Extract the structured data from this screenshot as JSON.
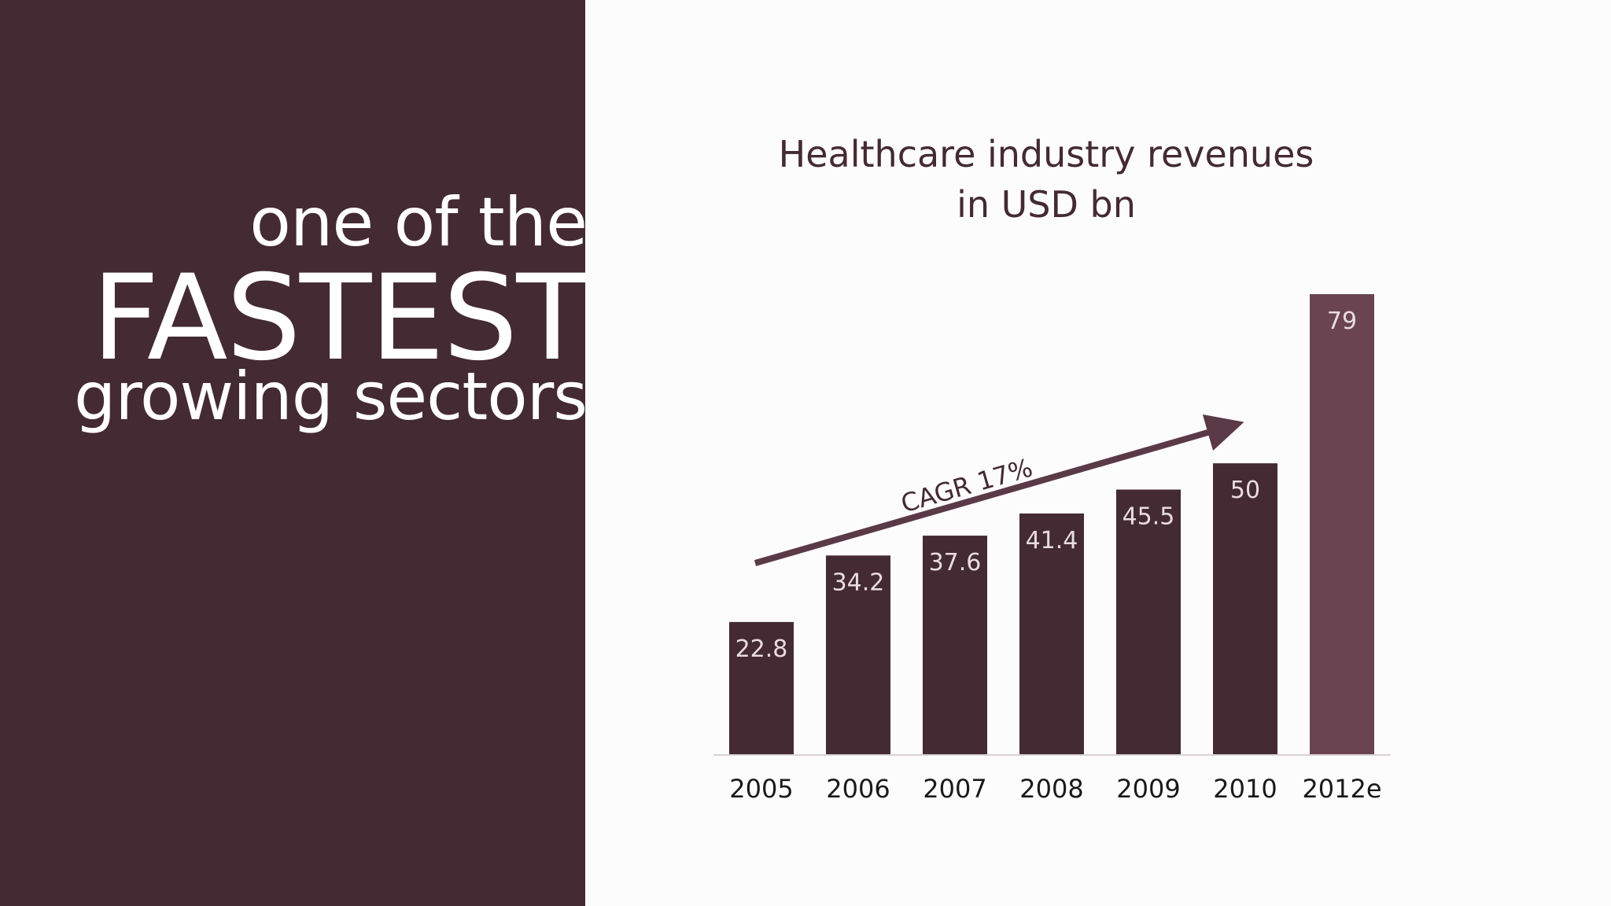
{
  "headline": {
    "line1": "one of the",
    "line2": "FASTEST",
    "line3": "growing sectors"
  },
  "colors": {
    "panel": "#442a33",
    "bar": "#442a33",
    "highlight_bar": "#6b4452",
    "arrow": "#5a3a46",
    "text_dark": "#1a1a1a",
    "label_light": "#e8dde0"
  },
  "chart_data": {
    "type": "bar",
    "title_line1": "Healthcare industry revenues",
    "title_line2": "in USD bn",
    "categories": [
      "2005",
      "2006",
      "2007",
      "2008",
      "2009",
      "2010",
      "2012e"
    ],
    "values": [
      22.8,
      34.2,
      37.6,
      41.4,
      45.5,
      50,
      79
    ],
    "data_labels": [
      "22.8",
      "34.2",
      "37.6",
      "41.4",
      "45.5",
      "50",
      "79"
    ],
    "highlighted_category": "2012e",
    "ylim": [
      0,
      79
    ],
    "grid": false,
    "annotation": "CAGR 17%"
  }
}
